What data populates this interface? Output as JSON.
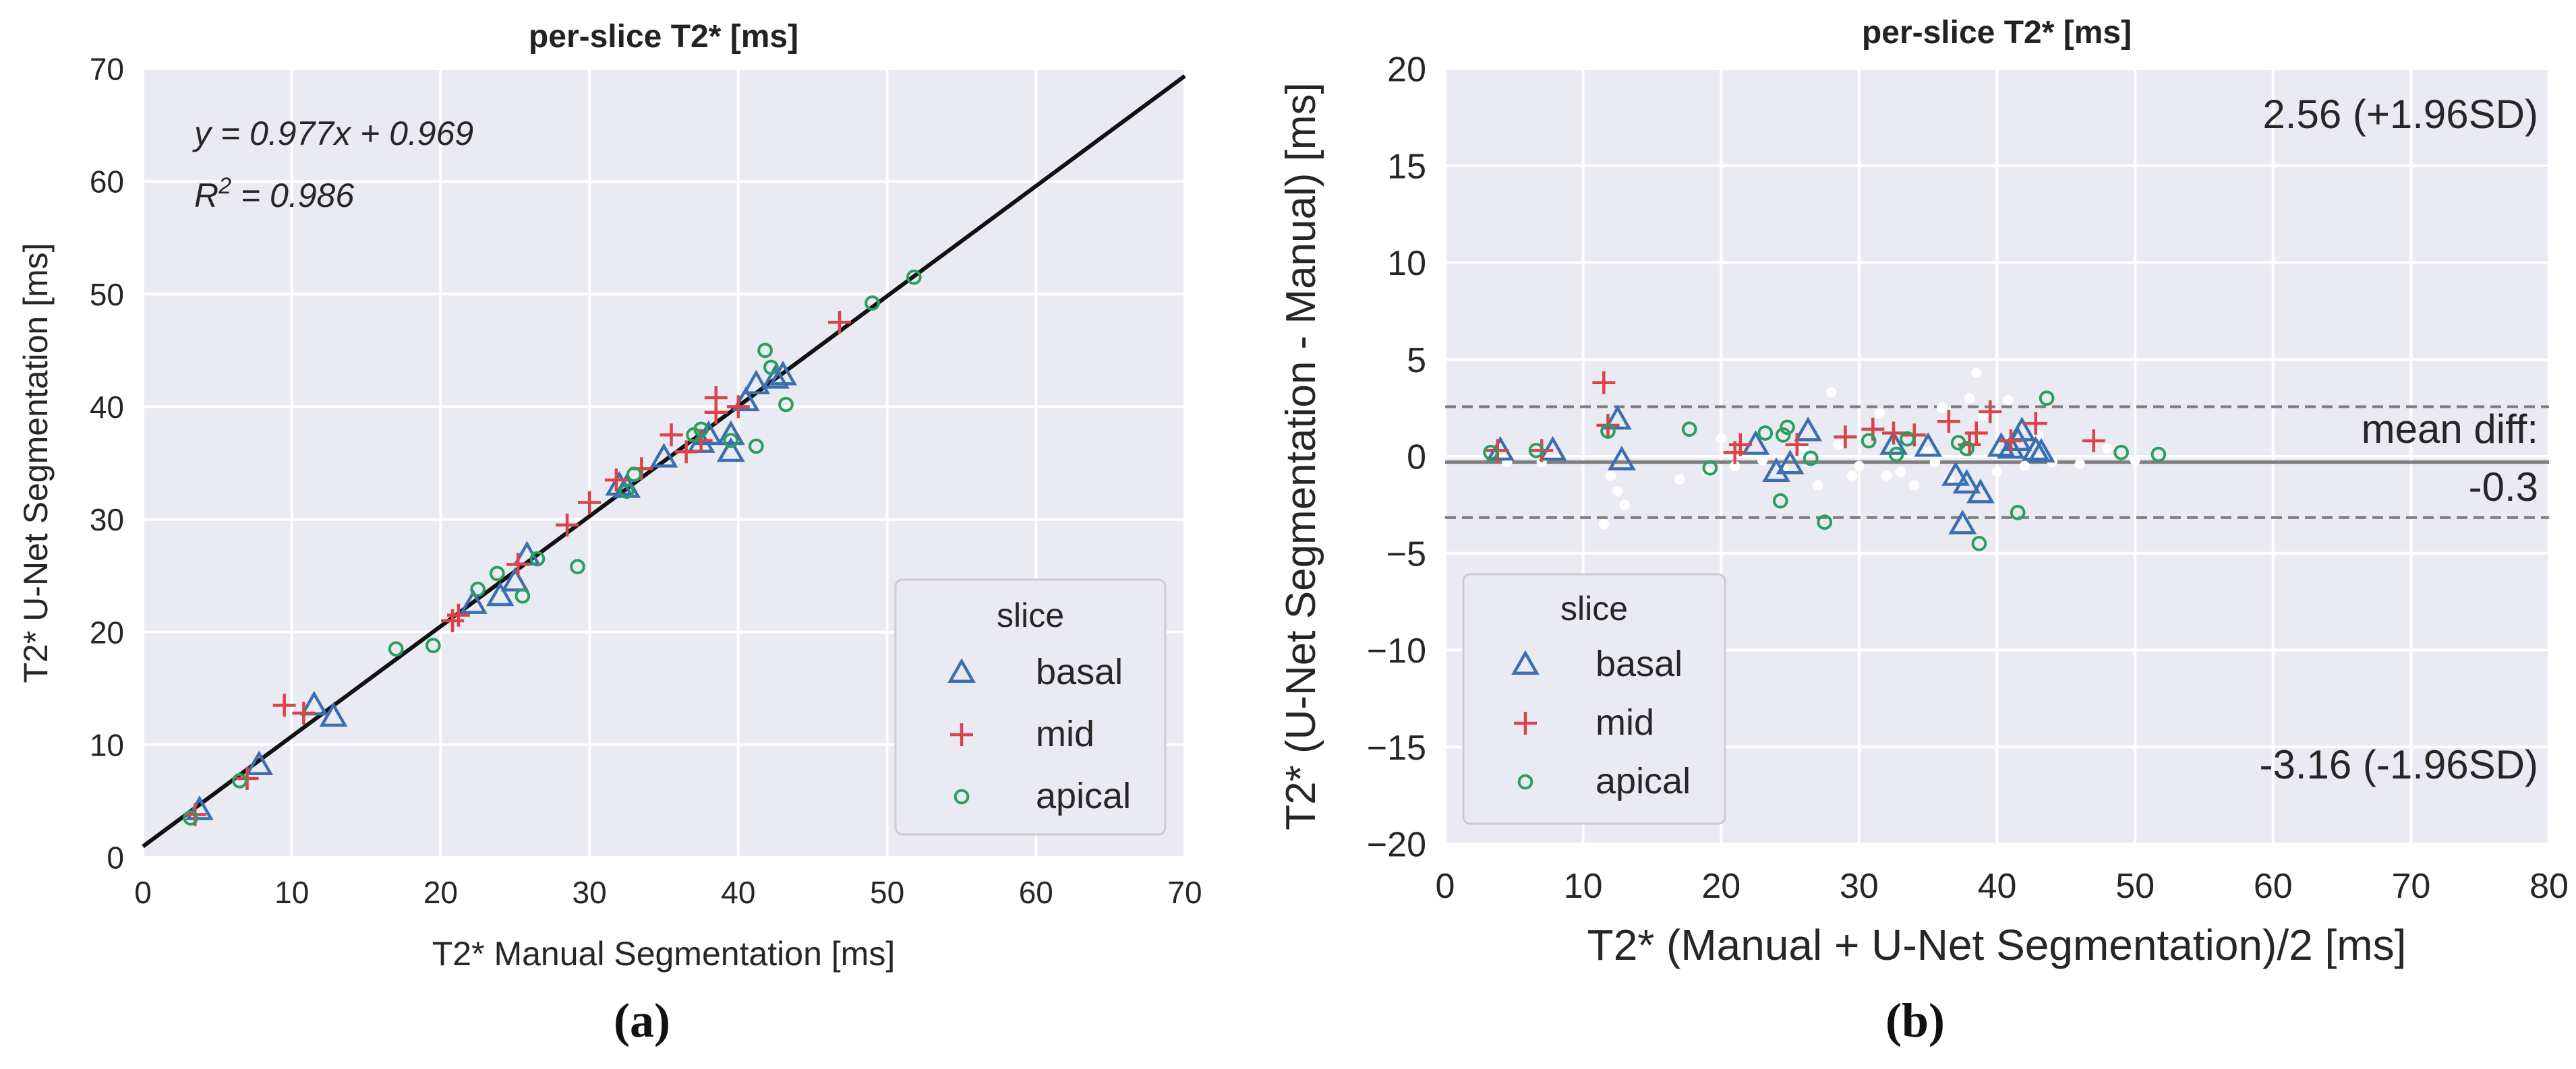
{
  "colors": {
    "basal": "#3a6fb0",
    "mid": "#d9444a",
    "apical": "#2a9e5e",
    "background": "#eaeaf2",
    "grid": "#ffffff",
    "regression": "#111111",
    "mean_line": "#7f7f7f",
    "loa_line": "#7f7f7f"
  },
  "panels": {
    "a": "(a)",
    "b": "(b)"
  },
  "chart_data": [
    {
      "type": "scatter",
      "title": "per-slice T2* [ms]",
      "xlabel": "T2* Manual Segmentation [ms]",
      "ylabel": "T2* U-Net Segmentation [ms]",
      "xlim": [
        0,
        70
      ],
      "ylim": [
        0,
        70
      ],
      "xticks": [
        "0",
        "10",
        "20",
        "30",
        "40",
        "50",
        "60",
        "70"
      ],
      "yticks": [
        "0",
        "10",
        "20",
        "30",
        "40",
        "50",
        "60",
        "70"
      ],
      "grid": true,
      "regression": {
        "slope": 0.977,
        "intercept": 0.969
      },
      "annotation_eq": "y = 0.977x + 0.969",
      "annotation_r2_base": "R",
      "annotation_r2_sup": "2",
      "annotation_r2_rest": " = 0.986",
      "legend": {
        "title": "slice",
        "placement": "lower right",
        "entries": [
          "basal",
          "mid",
          "apical"
        ]
      },
      "series": [
        {
          "name": "basal",
          "marker": "triangle",
          "points": [
            [
              3.8,
              4.2
            ],
            [
              7.8,
              8.2
            ],
            [
              11.5,
              13.5
            ],
            [
              12.8,
              12.5
            ],
            [
              22.2,
              22.5
            ],
            [
              24,
              23.2
            ],
            [
              25,
              24.5
            ],
            [
              25.8,
              26.8
            ],
            [
              32,
              33
            ],
            [
              32.5,
              32.8
            ],
            [
              35,
              35.5
            ],
            [
              37.5,
              36.8
            ],
            [
              38,
              37.5
            ],
            [
              39.5,
              36
            ],
            [
              39.5,
              37.5
            ],
            [
              40.5,
              40.5
            ],
            [
              41.2,
              42
            ],
            [
              42.5,
              42.5
            ],
            [
              43,
              42.8
            ]
          ]
        },
        {
          "name": "mid",
          "marker": "plus",
          "points": [
            [
              3.5,
              3.8
            ],
            [
              7,
              7
            ],
            [
              9.5,
              13.5
            ],
            [
              10.8,
              12.8
            ],
            [
              20.8,
              21
            ],
            [
              21.2,
              21.5
            ],
            [
              25.2,
              26
            ],
            [
              28.5,
              29.5
            ],
            [
              30,
              31.5
            ],
            [
              31.8,
              33.5
            ],
            [
              33.5,
              34.5
            ],
            [
              35.5,
              37.5
            ],
            [
              36.5,
              36
            ],
            [
              37.5,
              37
            ],
            [
              38.5,
              40.8
            ],
            [
              38.5,
              39.5
            ],
            [
              40,
              40
            ],
            [
              46.8,
              47.5
            ]
          ]
        },
        {
          "name": "apical",
          "marker": "circle",
          "points": [
            [
              3.2,
              3.5
            ],
            [
              6.5,
              6.8
            ],
            [
              17,
              18.5
            ],
            [
              19.5,
              18.8
            ],
            [
              22.5,
              23.8
            ],
            [
              23.8,
              25.2
            ],
            [
              25.5,
              23.2
            ],
            [
              26.5,
              26.5
            ],
            [
              29.2,
              25.8
            ],
            [
              32.5,
              32.5
            ],
            [
              33,
              34
            ],
            [
              37,
              37.5
            ],
            [
              37.5,
              38
            ],
            [
              39.5,
              37
            ],
            [
              41.2,
              36.5
            ],
            [
              41.8,
              45
            ],
            [
              42.2,
              43.5
            ],
            [
              43.2,
              40.2
            ],
            [
              49,
              49.2
            ],
            [
              51.8,
              51.5
            ]
          ]
        }
      ]
    },
    {
      "type": "scatter",
      "title": "per-slice T2* [ms]",
      "xlabel": "T2* (Manual + U-Net Segmentation)/2 [ms]",
      "ylabel": "T2* (U-Net Segmentation - Manual) [ms]",
      "xlim": [
        0,
        80
      ],
      "ylim": [
        -20,
        20
      ],
      "xticks": [
        "0",
        "10",
        "20",
        "30",
        "40",
        "50",
        "60",
        "70",
        "80"
      ],
      "yticks": [
        "−20",
        "−15",
        "−10",
        "−5",
        "0",
        "5",
        "10",
        "15",
        "20"
      ],
      "grid": true,
      "mean_diff": -0.3,
      "loa_upper": 2.56,
      "loa_lower": -3.16,
      "label_upper": "2.56 (+1.96SD)",
      "label_lower": "-3.16 (-1.96SD)",
      "label_mean_1": "mean diff:",
      "label_mean_2": "-0.3",
      "legend": {
        "title": "slice",
        "placement": "lower left",
        "entries": [
          "basal",
          "mid",
          "apical"
        ]
      },
      "series": [
        {
          "name": "basal",
          "marker": "triangle",
          "points": [
            [
              4,
              0.3
            ],
            [
              7.8,
              0.3
            ],
            [
              12.5,
              1.9
            ],
            [
              12.8,
              -0.2
            ],
            [
              22.5,
              0.6
            ],
            [
              24,
              -0.8
            ],
            [
              25,
              -0.4
            ],
            [
              26.3,
              1.3
            ],
            [
              32.5,
              0.6
            ],
            [
              35,
              0.5
            ],
            [
              37,
              -1
            ],
            [
              37.5,
              -3.5
            ],
            [
              37.8,
              -1.4
            ],
            [
              38.8,
              -1.9
            ],
            [
              40.3,
              0.5
            ],
            [
              41,
              0.4
            ],
            [
              41.5,
              0.8
            ],
            [
              41.8,
              1.3
            ],
            [
              42.8,
              0.3
            ],
            [
              43.2,
              0.2
            ]
          ]
        },
        {
          "name": "mid",
          "marker": "plus",
          "points": [
            [
              3.8,
              0.3
            ],
            [
              7,
              0.3
            ],
            [
              11.5,
              3.8
            ],
            [
              11.8,
              1.6
            ],
            [
              21,
              0.2
            ],
            [
              21.4,
              0.6
            ],
            [
              25.5,
              0.6
            ],
            [
              29,
              1
            ],
            [
              31,
              1.4
            ],
            [
              32.5,
              1.2
            ],
            [
              34,
              1.1
            ],
            [
              36.5,
              1.8
            ],
            [
              38,
              0.6
            ],
            [
              38.5,
              1.2
            ],
            [
              39.5,
              2.3
            ],
            [
              41,
              0.8
            ],
            [
              42.8,
              1.7
            ],
            [
              47,
              0.8
            ]
          ]
        },
        {
          "name": "apical",
          "marker": "circle",
          "points": [
            [
              3.3,
              0.2
            ],
            [
              6.6,
              0.3
            ],
            [
              11.8,
              1.3
            ],
            [
              17.7,
              1.4
            ],
            [
              19.2,
              -0.6
            ],
            [
              23.2,
              1.2
            ],
            [
              24.5,
              1.1
            ],
            [
              24.8,
              1.5
            ],
            [
              24.3,
              -2.3
            ],
            [
              26.5,
              -0.1
            ],
            [
              27.5,
              -3.4
            ],
            [
              30.7,
              0.8
            ],
            [
              32.7,
              0.1
            ],
            [
              33.5,
              0.9
            ],
            [
              37.2,
              0.7
            ],
            [
              37.8,
              0.4
            ],
            [
              38.7,
              -4.5
            ],
            [
              41.5,
              -2.9
            ],
            [
              43.6,
              3
            ],
            [
              49,
              0.2
            ],
            [
              51.7,
              0.1
            ]
          ]
        },
        {
          "name": "",
          "marker": "dot",
          "points": [
            [
              4.5,
              -0.3
            ],
            [
              7,
              -0.3
            ],
            [
              12,
              -1
            ],
            [
              12.5,
              -1.8
            ],
            [
              13,
              -2.5
            ],
            [
              11.5,
              -3.5
            ],
            [
              17,
              -1.2
            ],
            [
              19,
              -0.8
            ],
            [
              20,
              0.9
            ],
            [
              21,
              -0.5
            ],
            [
              23,
              -0.2
            ],
            [
              24.5,
              -0.6
            ],
            [
              26,
              0.5
            ],
            [
              27,
              -1.5
            ],
            [
              28,
              3.3
            ],
            [
              28.5,
              0.6
            ],
            [
              29.5,
              -1
            ],
            [
              30,
              -0.5
            ],
            [
              31.5,
              2.2
            ],
            [
              32,
              -1
            ],
            [
              33,
              -0.8
            ],
            [
              34,
              -1.5
            ],
            [
              35,
              0.2
            ],
            [
              35.5,
              -0.3
            ],
            [
              36,
              2.5
            ],
            [
              36.5,
              -1.2
            ],
            [
              38,
              3
            ],
            [
              38.5,
              4.3
            ],
            [
              39,
              2.1
            ],
            [
              40,
              -0.8
            ],
            [
              40.8,
              2.9
            ],
            [
              42,
              -0.5
            ],
            [
              43,
              1.1
            ],
            [
              44,
              -0.3
            ],
            [
              46,
              -0.4
            ],
            [
              48,
              0.4
            ],
            [
              50,
              -0.2
            ]
          ]
        }
      ]
    }
  ]
}
